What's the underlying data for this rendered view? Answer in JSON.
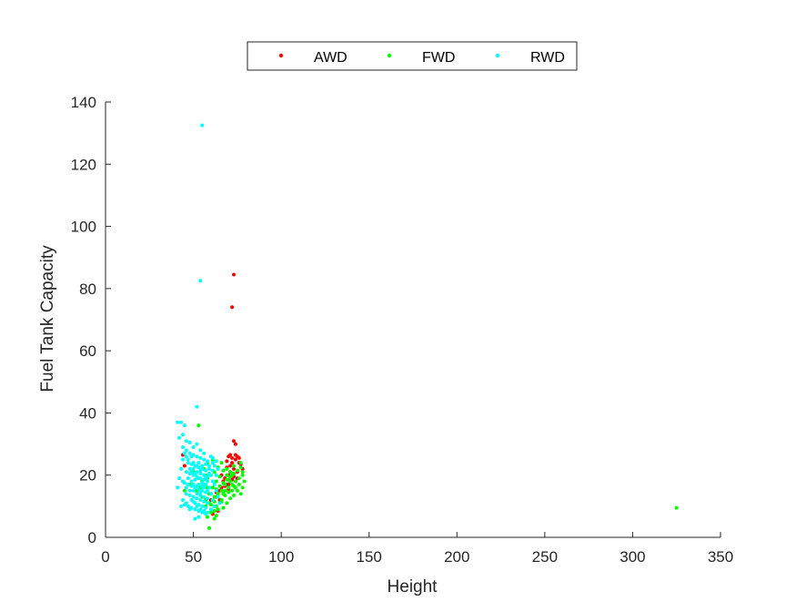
{
  "chart_data": {
    "type": "scatter",
    "title": "",
    "xlabel": "Height",
    "ylabel": "Fuel Tank Capacity",
    "xlim": [
      0,
      350
    ],
    "ylim": [
      0,
      140
    ],
    "xticks": [
      0,
      50,
      100,
      150,
      200,
      250,
      300,
      350
    ],
    "yticks": [
      0,
      20,
      40,
      60,
      80,
      100,
      120,
      140
    ],
    "grid": false,
    "legend_position": "top-center",
    "series": [
      {
        "name": "AWD",
        "color": "#ff0000",
        "points": [
          [
            73,
            84.5
          ],
          [
            72,
            74
          ],
          [
            73,
            31
          ],
          [
            74,
            30
          ],
          [
            70,
            26
          ],
          [
            72,
            25.5
          ],
          [
            74,
            25
          ],
          [
            76,
            24
          ],
          [
            71,
            23
          ],
          [
            73,
            22
          ],
          [
            75,
            21
          ],
          [
            70,
            20
          ],
          [
            68,
            19
          ],
          [
            72,
            18.5
          ],
          [
            74,
            18
          ],
          [
            69,
            17
          ],
          [
            66,
            16
          ],
          [
            70,
            15.5
          ],
          [
            67,
            14
          ],
          [
            63,
            13
          ],
          [
            65,
            12
          ],
          [
            62,
            10
          ],
          [
            64,
            8.5
          ],
          [
            61,
            7.5
          ],
          [
            44,
            26.5
          ],
          [
            45,
            23
          ],
          [
            75,
            26
          ],
          [
            77,
            23.5
          ],
          [
            71,
            21
          ],
          [
            69,
            22.5
          ],
          [
            66,
            20
          ],
          [
            67,
            18
          ],
          [
            73,
            19.5
          ],
          [
            72,
            24
          ],
          [
            76,
            25.5
          ],
          [
            78,
            22
          ],
          [
            70,
            17
          ],
          [
            65,
            15
          ],
          [
            68,
            16.5
          ],
          [
            71,
            26.5
          ],
          [
            74,
            26.5
          ],
          [
            73,
            20.5
          ],
          [
            75,
            19
          ],
          [
            69,
            24.5
          ],
          [
            60,
            12
          ],
          [
            63,
            14.5
          ]
        ]
      },
      {
        "name": "FWD",
        "color": "#00ff00",
        "points": [
          [
            325,
            9.5
          ],
          [
            53,
            36
          ],
          [
            59,
            3
          ],
          [
            62,
            6
          ],
          [
            60,
            8
          ],
          [
            63,
            10
          ],
          [
            65,
            11
          ],
          [
            66,
            12
          ],
          [
            64,
            13
          ],
          [
            67,
            14
          ],
          [
            68,
            15
          ],
          [
            70,
            16
          ],
          [
            72,
            17
          ],
          [
            74,
            18
          ],
          [
            76,
            19
          ],
          [
            78,
            20
          ],
          [
            71,
            21
          ],
          [
            69,
            22
          ],
          [
            73,
            23
          ],
          [
            77,
            24
          ],
          [
            61,
            25
          ],
          [
            58,
            24
          ],
          [
            56,
            22
          ],
          [
            57,
            20
          ],
          [
            55,
            18
          ],
          [
            58,
            16
          ],
          [
            60,
            14
          ],
          [
            62,
            13
          ],
          [
            61,
            12
          ],
          [
            59,
            11
          ],
          [
            57,
            10
          ],
          [
            63,
            15.5
          ],
          [
            65,
            16.5
          ],
          [
            67,
            17.5
          ],
          [
            69,
            18.5
          ],
          [
            71,
            19.5
          ],
          [
            73,
            20.5
          ],
          [
            75,
            21.5
          ],
          [
            77,
            22.5
          ],
          [
            66,
            11.5
          ],
          [
            68,
            13.5
          ],
          [
            70,
            14.5
          ],
          [
            64,
            9
          ],
          [
            62,
            8.5
          ],
          [
            72,
            15
          ],
          [
            74,
            16
          ],
          [
            76,
            17
          ],
          [
            78,
            16
          ],
          [
            79,
            18
          ],
          [
            78,
            21
          ],
          [
            66,
            24
          ],
          [
            64,
            22.5
          ],
          [
            62,
            21
          ],
          [
            60,
            20
          ],
          [
            58,
            19
          ],
          [
            56,
            17
          ],
          [
            54,
            16
          ],
          [
            52,
            15
          ],
          [
            55,
            13
          ],
          [
            57,
            12
          ],
          [
            59,
            14
          ],
          [
            61,
            16
          ],
          [
            63,
            18
          ],
          [
            65,
            19.5
          ],
          [
            67,
            21.5
          ],
          [
            69,
            20
          ],
          [
            71,
            18
          ],
          [
            73,
            16.5
          ],
          [
            75,
            15
          ],
          [
            77,
            14
          ],
          [
            60,
            10.5
          ],
          [
            62,
            11.5
          ],
          [
            64,
            14
          ],
          [
            66,
            15
          ],
          [
            68,
            17
          ],
          [
            70,
            18.5
          ],
          [
            72,
            20
          ],
          [
            58,
            6.5
          ],
          [
            63,
            7
          ],
          [
            67,
            9.5
          ],
          [
            69,
            11
          ],
          [
            71,
            12.5
          ],
          [
            73,
            13.5
          ],
          [
            48,
            17
          ],
          [
            50,
            21
          ],
          [
            45,
            15
          ]
        ]
      },
      {
        "name": "RWD",
        "color": "#00ffff",
        "points": [
          [
            55,
            132.5
          ],
          [
            54,
            82.5
          ],
          [
            52,
            42
          ],
          [
            43,
            37
          ],
          [
            41,
            37
          ],
          [
            45,
            36
          ],
          [
            42,
            32
          ],
          [
            44,
            29
          ],
          [
            46,
            28
          ],
          [
            48,
            27
          ],
          [
            50,
            26.5
          ],
          [
            52,
            26
          ],
          [
            54,
            25.5
          ],
          [
            56,
            25
          ],
          [
            58,
            24.5
          ],
          [
            47,
            24
          ],
          [
            49,
            23.5
          ],
          [
            51,
            23
          ],
          [
            53,
            22.5
          ],
          [
            55,
            22
          ],
          [
            57,
            21.5
          ],
          [
            46,
            21
          ],
          [
            48,
            20.5
          ],
          [
            50,
            20
          ],
          [
            52,
            19.5
          ],
          [
            54,
            19
          ],
          [
            56,
            18.5
          ],
          [
            58,
            18
          ],
          [
            45,
            17.5
          ],
          [
            47,
            17
          ],
          [
            49,
            16.5
          ],
          [
            51,
            16
          ],
          [
            53,
            15.5
          ],
          [
            55,
            15
          ],
          [
            57,
            14.5
          ],
          [
            46,
            14
          ],
          [
            48,
            13.5
          ],
          [
            50,
            13
          ],
          [
            52,
            12.5
          ],
          [
            54,
            12
          ],
          [
            56,
            11.5
          ],
          [
            58,
            11
          ],
          [
            45,
            10.5
          ],
          [
            47,
            10
          ],
          [
            49,
            9.5
          ],
          [
            51,
            9
          ],
          [
            53,
            8.5
          ],
          [
            55,
            8
          ],
          [
            57,
            7.5
          ],
          [
            51,
            6
          ],
          [
            53,
            6.5
          ],
          [
            43,
            10
          ],
          [
            44,
            12
          ],
          [
            42,
            19
          ],
          [
            43,
            22
          ],
          [
            44,
            25
          ],
          [
            41,
            16
          ],
          [
            60,
            26
          ],
          [
            61,
            24
          ],
          [
            59,
            22
          ],
          [
            60,
            20
          ],
          [
            61,
            18
          ],
          [
            59,
            16
          ],
          [
            60,
            14
          ],
          [
            61,
            12
          ],
          [
            62,
            10
          ],
          [
            50,
            29
          ],
          [
            52,
            30
          ],
          [
            54,
            28
          ],
          [
            56,
            27
          ],
          [
            48,
            30.5
          ],
          [
            46,
            31
          ],
          [
            44,
            33
          ],
          [
            49,
            18
          ],
          [
            51,
            18.5
          ],
          [
            53,
            17
          ],
          [
            55,
            16.5
          ],
          [
            57,
            17
          ],
          [
            50,
            15
          ],
          [
            52,
            14
          ],
          [
            54,
            13.5
          ],
          [
            56,
            13
          ],
          [
            58,
            12.5
          ],
          [
            49,
            12
          ],
          [
            51,
            11
          ],
          [
            53,
            10.5
          ],
          [
            55,
            10
          ],
          [
            57,
            9.5
          ],
          [
            47,
            19
          ],
          [
            48,
            22
          ],
          [
            50,
            24
          ],
          [
            52,
            21
          ],
          [
            54,
            20.5
          ],
          [
            56,
            20
          ],
          [
            58,
            19.5
          ],
          [
            46,
            26
          ],
          [
            45,
            27
          ],
          [
            47,
            25
          ],
          [
            49,
            26
          ],
          [
            53,
            24
          ],
          [
            55,
            23
          ],
          [
            57,
            23.5
          ],
          [
            59,
            23
          ],
          [
            50,
            11.5
          ],
          [
            52,
            10
          ],
          [
            54,
            9
          ],
          [
            56,
            8.5
          ],
          [
            58,
            8
          ],
          [
            48,
            9
          ],
          [
            46,
            11
          ],
          [
            63,
            20
          ],
          [
            64,
            22
          ],
          [
            62,
            17
          ],
          [
            63,
            15
          ],
          [
            64,
            13
          ],
          [
            65,
            11
          ],
          [
            60,
            9
          ],
          [
            54,
            14.5
          ],
          [
            50,
            17
          ],
          [
            52,
            16.5
          ],
          [
            48,
            15
          ],
          [
            46,
            16
          ],
          [
            44,
            18
          ],
          [
            56,
            16
          ],
          [
            58,
            15
          ],
          [
            50,
            22
          ],
          [
            52,
            23
          ],
          [
            54,
            21.5
          ],
          [
            49,
            21
          ],
          [
            51,
            20.5
          ],
          [
            53,
            19
          ],
          [
            55,
            17.5
          ],
          [
            57,
            19
          ],
          [
            59,
            20.5
          ],
          [
            61,
            21.5
          ],
          [
            62,
            23
          ],
          [
            61,
            25.5
          ],
          [
            63,
            24.5
          ]
        ]
      }
    ]
  }
}
